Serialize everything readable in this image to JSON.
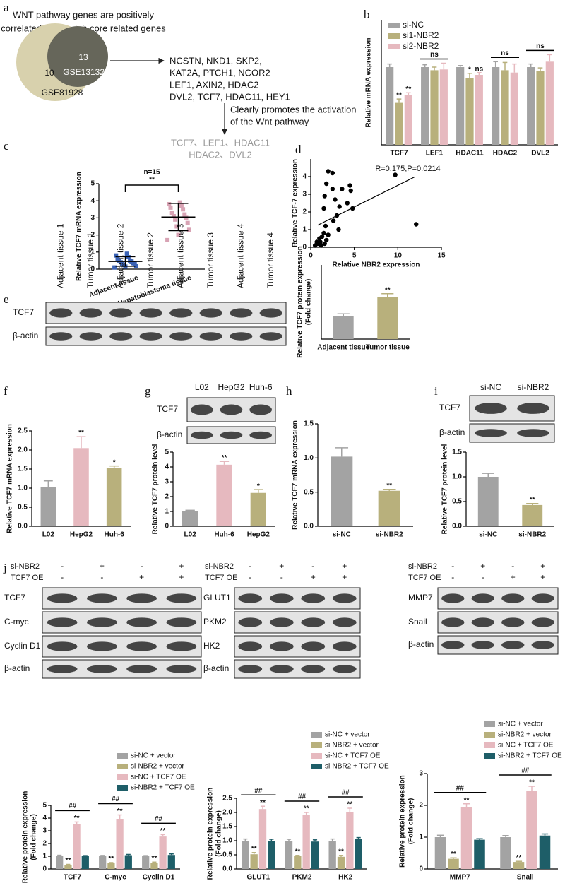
{
  "panel_labels": [
    "a",
    "b",
    "c",
    "d",
    "e",
    "f",
    "g",
    "h",
    "i",
    "j"
  ],
  "venn": {
    "title": [
      "WNT pathway genes are positively",
      "correlated and enrich core related genes"
    ],
    "sets": [
      {
        "name": "GSE81928",
        "count": 10
      },
      {
        "name": "GSE131329",
        "count": 13
      }
    ],
    "genes": [
      "NCSTN, NKD1, SKP2,",
      "KAT2A, PTCH1, NCOR2",
      "LEF1, AXIN2, HDAC2",
      "DVL2, TCF7, HDAC11, HEY1"
    ],
    "arrow_text": [
      "Clearly promotes the activation",
      "of the Wnt pathway"
    ],
    "result": [
      "TCF7、LEF1、HDAC11",
      "HDAC2、DVL2"
    ]
  },
  "chart_data": [
    {
      "type": "bar",
      "ylabel": "Relative mRNA expression",
      "categories": [
        "TCF7",
        "LEF1",
        "HDAC11",
        "HDAC2",
        "DVL2"
      ],
      "ylim": [
        0,
        1.6
      ],
      "legend": "upper left",
      "series": [
        {
          "name": "si-NC",
          "color": "#a3a3a3",
          "values": [
            1.0,
            1.0,
            1.0,
            1.0,
            1.0
          ],
          "errors": [
            0.04,
            0.03,
            0.02,
            0.07,
            0.04
          ]
        },
        {
          "name": "si1-NBR2",
          "color": "#b8b07c",
          "values": [
            0.54,
            0.96,
            0.86,
            0.96,
            0.95
          ],
          "errors": [
            0.05,
            0.04,
            0.06,
            0.1,
            0.04
          ],
          "labels": [
            "**",
            null,
            "*",
            null,
            null
          ]
        },
        {
          "name": "si2-NBR2",
          "color": "#e6b9bf",
          "values": [
            0.64,
            0.97,
            0.9,
            0.93,
            1.07
          ],
          "errors": [
            0.03,
            0.08,
            0.03,
            0.11,
            0.09
          ],
          "labels": [
            "**",
            null,
            "ns",
            null,
            null
          ]
        }
      ],
      "bracket_labels": [
        null,
        "ns",
        null,
        "ns",
        "ns"
      ]
    },
    {
      "type": "dot",
      "ylabel": "Relative TCF7 mRNA expression",
      "categories": [
        "Adjacent tissue",
        "Hepatoblastoma tissue"
      ],
      "colors": [
        "#3a62b4",
        "#d8a3b4"
      ],
      "groups": [
        [
          0.1,
          0.15,
          0.2,
          0.25,
          0.3,
          0.3,
          0.35,
          0.4,
          0.45,
          0.5,
          0.5,
          0.6,
          0.7,
          0.8,
          0.9
        ],
        [
          1.7,
          2.0,
          2.3,
          2.5,
          2.7,
          2.9,
          3.0,
          3.1,
          3.2,
          3.3,
          3.5,
          3.6,
          3.7,
          3.8,
          3.9
        ]
      ],
      "means": [
        0.45,
        3.05
      ],
      "sds": [
        0.28,
        0.8
      ],
      "ylim": [
        0,
        5
      ],
      "yticks": [
        0,
        1,
        2,
        3,
        4,
        5
      ],
      "annotation": "n=15",
      "bracket_label": "**"
    },
    {
      "type": "scatter",
      "xlabel": "Relative NBR2 expression",
      "ylabel": "Relative TCF-7 expression",
      "annotation": "R=0.175,P=0.0214",
      "color": "#000000",
      "x": [
        0.5,
        0.7,
        0.8,
        1.0,
        1.1,
        1.2,
        1.3,
        1.5,
        1.6,
        1.8,
        2.0,
        1.7,
        1.5,
        1.6,
        2.0,
        2.5,
        1.8,
        2.8,
        3.0,
        3.3,
        3.6,
        2.5,
        4.2,
        4.5,
        4.8,
        4.6,
        2.6,
        3.2,
        9.7,
        12.1
      ],
      "y": [
        0.1,
        0.3,
        0.2,
        0.5,
        0.3,
        0.1,
        0.6,
        0.8,
        0.2,
        0.4,
        0.7,
        1.2,
        2.2,
        2.9,
        4.3,
        4.2,
        3.6,
        2.7,
        1.8,
        2.3,
        3.3,
        3.3,
        2.5,
        3.5,
        2.2,
        3.2,
        1.5,
        1.0,
        4.1,
        1.3
      ],
      "fit": {
        "x": [
          0.8,
          12
        ],
        "y": [
          1.25,
          4.0
        ]
      },
      "xlim": [
        0,
        15
      ],
      "xticks": [
        0,
        5,
        10,
        15
      ],
      "ylim": [
        0,
        5
      ],
      "yticks": [
        0,
        1,
        2,
        3,
        4
      ]
    },
    {
      "type": "bar",
      "ylabel": [
        "Relative TCF7 protein expression",
        "(Fold change)"
      ],
      "categories": [
        "Adjacent tissue",
        "Tumor tissue"
      ],
      "values": [
        1.0,
        1.82
      ],
      "errors": [
        0.09,
        0.14
      ],
      "labels": [
        null,
        "**"
      ],
      "colors": [
        "#a3a3a3",
        "#b8b07c"
      ],
      "ylim": [
        0,
        3.2
      ]
    },
    {
      "type": "bar",
      "ylabel": "Relative TCF7 mRNA expression",
      "categories": [
        "L02",
        "HepG2",
        "Huh-6"
      ],
      "values": [
        1.02,
        2.05,
        1.52
      ],
      "errors": [
        0.17,
        0.3,
        0.06
      ],
      "labels": [
        null,
        "**",
        "*"
      ],
      "colors": [
        "#a3a3a3",
        "#e6b9bf",
        "#b8b07c"
      ],
      "ylim": [
        0,
        2.5
      ],
      "yticks": [
        {
          "value": 0,
          "label": "0.0"
        },
        0.5,
        {
          "value": 1,
          "label": "1.0"
        },
        1.5,
        {
          "value": 2,
          "label": "2.0"
        },
        2.5
      ]
    },
    {
      "type": "bar",
      "ylabel": "Relative TCF7 protein level",
      "categories": [
        "L02",
        "Huh-6",
        "HepG2"
      ],
      "values": [
        1.0,
        4.15,
        2.25
      ],
      "errors": [
        0.08,
        0.22,
        0.22
      ],
      "labels": [
        null,
        "**",
        "*"
      ],
      "colors": [
        "#a3a3a3",
        "#e6b9bf",
        "#b8b07c"
      ],
      "ylim": [
        0,
        5
      ],
      "yticks": [
        0,
        1,
        2,
        3,
        4,
        5
      ]
    },
    {
      "type": "bar",
      "ylabel": "Relative TCF7 mRNA expression",
      "categories": [
        "si-NC",
        "si-NBR2"
      ],
      "values": [
        1.02,
        0.52
      ],
      "errors": [
        0.13,
        0.02
      ],
      "labels": [
        null,
        "**"
      ],
      "colors": [
        "#a3a3a3",
        "#b8b07c"
      ],
      "ylim": [
        0,
        1.5
      ],
      "yticks": [
        {
          "value": 0,
          "label": "0.0"
        },
        0.5,
        {
          "value": 1,
          "label": "1.0"
        },
        1.5
      ]
    },
    {
      "type": "bar",
      "ylabel": "Relative TCF7 protein level",
      "categories": [
        "si-NC",
        "si-NBR2"
      ],
      "values": [
        1.0,
        0.43
      ],
      "errors": [
        0.07,
        0.03
      ],
      "labels": [
        null,
        "**"
      ],
      "colors": [
        "#a3a3a3",
        "#b8b07c"
      ],
      "ylim": [
        0,
        1.5
      ],
      "yticks": [
        {
          "value": 0,
          "label": "0.0"
        },
        0.5,
        {
          "value": 1,
          "label": "1.0"
        },
        1.5
      ]
    },
    {
      "type": "bar",
      "ylabel": [
        "Relative protein expression",
        "(Fold change)"
      ],
      "categories": [
        "TCF7",
        "C-myc",
        "Cyclin D1"
      ],
      "ylim": [
        0,
        5
      ],
      "yticks": [
        0,
        1,
        2,
        3,
        4,
        5
      ],
      "legend": "top",
      "series": [
        {
          "name": "si-NC + vector",
          "color": "#a3a3a3",
          "values": [
            1.0,
            1.0,
            1.0
          ],
          "errors": [
            0.08,
            0.06,
            0.05
          ]
        },
        {
          "name": "si-NBR2 + vector",
          "color": "#b8b07c",
          "values": [
            0.32,
            0.45,
            0.5
          ],
          "errors": [
            0.04,
            0.05,
            0.04
          ],
          "labels": [
            "**",
            "**",
            "**"
          ]
        },
        {
          "name": "si-NC + TCF7 OE",
          "color": "#e6b9bf",
          "values": [
            3.5,
            3.9,
            2.55
          ],
          "errors": [
            0.2,
            0.35,
            0.15
          ],
          "labels": [
            "**",
            "**",
            "**"
          ]
        },
        {
          "name": "si-NBR2 + TCF7 OE",
          "color": "#1e5e68",
          "values": [
            1.0,
            1.08,
            1.1
          ],
          "errors": [
            0.05,
            0.06,
            0.08
          ]
        }
      ],
      "bracket_labels": [
        "##",
        "##",
        "##"
      ]
    },
    {
      "type": "bar",
      "ylabel": [
        "Relative protein expression",
        "(Fold change)"
      ],
      "categories": [
        "GLUT1",
        "PKM2",
        "HK2"
      ],
      "ylim": [
        0,
        2.5
      ],
      "legend": "top",
      "yticks": [
        {
          "value": 0,
          "label": "0.0"
        },
        0.5,
        {
          "value": 1,
          "label": "1.0"
        },
        1.5,
        {
          "value": 2,
          "label": "2.0"
        },
        2.5
      ],
      "series": [
        {
          "name": "si-NC + vector",
          "color": "#a3a3a3",
          "values": [
            1.0,
            1.0,
            1.0
          ],
          "errors": [
            0.06,
            0.05,
            0.06
          ]
        },
        {
          "name": "si-NBR2 + vector",
          "color": "#b8b07c",
          "values": [
            0.52,
            0.45,
            0.43
          ],
          "errors": [
            0.06,
            0.03,
            0.05
          ],
          "labels": [
            "**",
            "**",
            "**"
          ]
        },
        {
          "name": "si-NC + TCF7 OE",
          "color": "#e6b9bf",
          "values": [
            2.12,
            1.9,
            2.0
          ],
          "errors": [
            0.1,
            0.1,
            0.15
          ],
          "labels": [
            "**",
            "**",
            "**"
          ]
        },
        {
          "name": "si-NBR2 + TCF7 OE",
          "color": "#1e5e68",
          "values": [
            1.0,
            0.97,
            1.05
          ],
          "errors": [
            0.05,
            0.06,
            0.06
          ]
        }
      ],
      "bracket_labels": [
        "##",
        "##",
        "##"
      ]
    },
    {
      "type": "bar",
      "ylabel": [
        "Relative protein expression",
        "(Fold change)"
      ],
      "categories": [
        "MMP7",
        "Snail"
      ],
      "ylim": [
        0,
        3
      ],
      "yticks": [
        0,
        1,
        2,
        3
      ],
      "legend": "top",
      "series": [
        {
          "name": "si-NC + vector",
          "color": "#a3a3a3",
          "values": [
            1.0,
            1.0
          ],
          "errors": [
            0.06,
            0.05
          ]
        },
        {
          "name": "si-NBR2 + vector",
          "color": "#b8b07c",
          "values": [
            0.32,
            0.22
          ],
          "errors": [
            0.03,
            0.02
          ],
          "labels": [
            "**",
            "**"
          ]
        },
        {
          "name": "si-NC + TCF7 OE",
          "color": "#e6b9bf",
          "values": [
            1.95,
            2.45
          ],
          "errors": [
            0.1,
            0.15
          ],
          "labels": [
            "**",
            "**"
          ]
        },
        {
          "name": "si-NBR2 + TCF7 OE",
          "color": "#1e5e68",
          "values": [
            0.92,
            1.05
          ],
          "errors": [
            0.03,
            0.05
          ]
        }
      ],
      "bracket_labels": [
        "##",
        "##"
      ]
    }
  ],
  "blots": [
    {
      "lanes": [
        "Adjacent tissue 1",
        "Tumor tissue 1",
        "Adjacent tissue 2",
        "Tumor tissue 2",
        "Adjacent tissue 3",
        "Tumor tissue 3",
        "Adjacent tissue 4",
        "Tumor tissue 4"
      ],
      "rows": [
        "TCF7",
        "β-actin"
      ]
    },
    {
      "lanes": [
        "L02",
        "HepG2",
        "Huh-6"
      ],
      "rows": [
        "TCF7",
        "β-actin"
      ]
    },
    {
      "lanes": [
        "si-NC",
        "si-NBR2"
      ],
      "rows": [
        "TCF7",
        "β-actin"
      ]
    },
    {
      "conditions": [
        {
          "name": "si-NBR2",
          "signs": [
            "-",
            "+",
            "-",
            "+"
          ]
        },
        {
          "name": "TCF7 OE",
          "signs": [
            "-",
            "-",
            "+",
            "+"
          ]
        }
      ],
      "rows": [
        "TCF7",
        "C-myc",
        "Cyclin D1",
        "β-actin"
      ]
    },
    {
      "conditions": [
        {
          "name": "si-NBR2",
          "signs": [
            "-",
            "+",
            "-",
            "+"
          ]
        },
        {
          "name": "TCF7 OE",
          "signs": [
            "-",
            "-",
            "+",
            "+"
          ]
        }
      ],
      "rows": [
        "GLUT1",
        "PKM2",
        "HK2",
        "β-actin"
      ]
    },
    {
      "conditions": [
        {
          "name": "si-NBR2",
          "signs": [
            "-",
            "+",
            "-",
            "+"
          ]
        },
        {
          "name": "TCF7 OE",
          "signs": [
            "-",
            "-",
            "+",
            "+"
          ]
        }
      ],
      "rows": [
        "MMP7",
        "Snail",
        "β-actin"
      ]
    }
  ]
}
